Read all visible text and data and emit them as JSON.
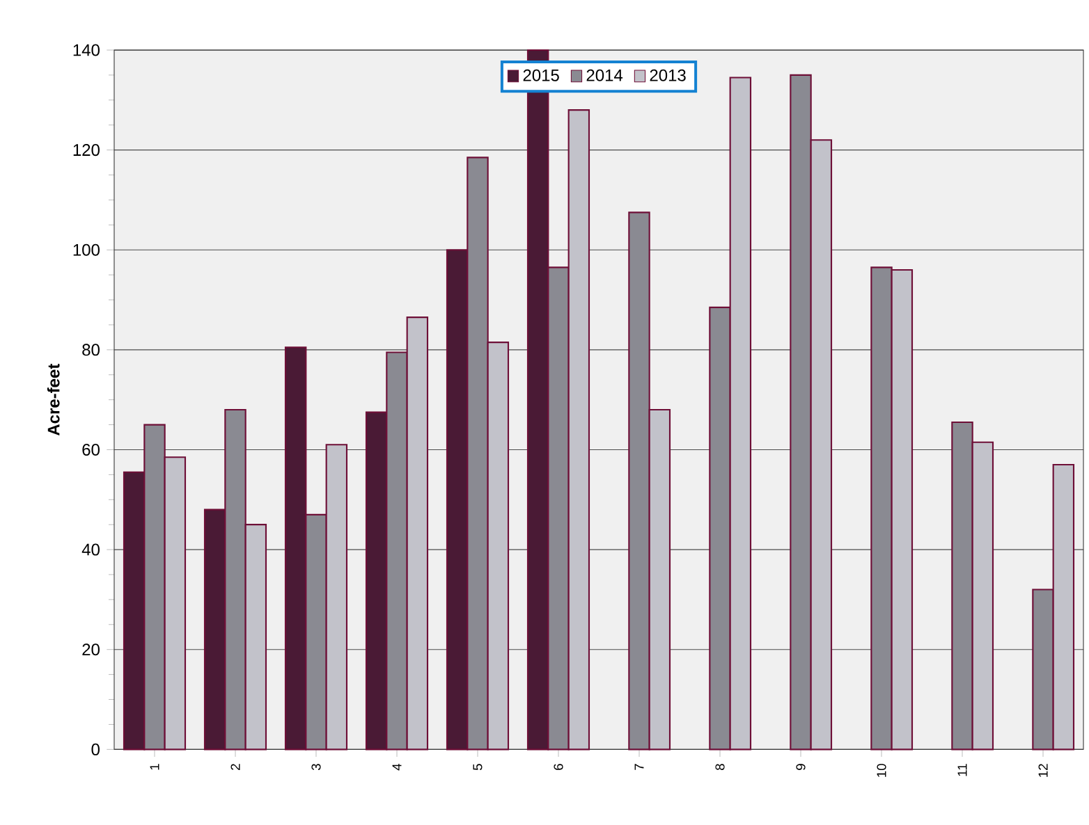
{
  "chart_data": {
    "type": "bar",
    "ylabel": "Acre-feet",
    "categories": [
      "1",
      "2",
      "3",
      "4",
      "5",
      "6",
      "7",
      "8",
      "9",
      "10",
      "11",
      "12"
    ],
    "series": [
      {
        "name": "2015",
        "color": "#4a1a35",
        "values": [
          55.5,
          48,
          80.5,
          67.5,
          100,
          140,
          null,
          null,
          null,
          null,
          null,
          null
        ]
      },
      {
        "name": "2014",
        "color": "#8a8a92",
        "values": [
          65,
          68,
          47,
          79.5,
          118.5,
          96.5,
          107.5,
          88.5,
          135,
          96.5,
          65.5,
          32
        ]
      },
      {
        "name": "2013",
        "color": "#c2c2ca",
        "values": [
          58.5,
          45,
          61,
          86.5,
          81.5,
          128,
          68,
          134.5,
          122,
          96,
          61.5,
          57
        ]
      }
    ],
    "ylim": [
      0,
      140
    ],
    "yticks": [
      0,
      20,
      40,
      60,
      80,
      100,
      120,
      140
    ],
    "grid": "y",
    "legend": "top"
  }
}
